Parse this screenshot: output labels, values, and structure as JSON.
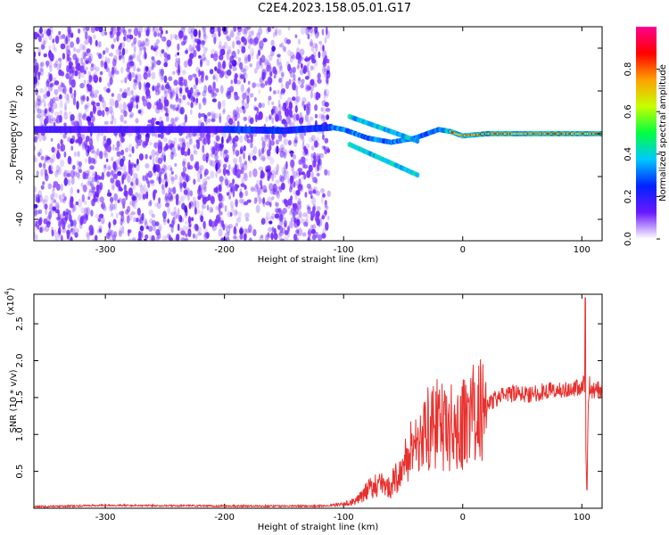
{
  "title": "C2E4.2023.158.05.01.G17",
  "colors": {
    "line": "#e8302d",
    "axis": "#000000",
    "spectrogram_base": "#6a18ff"
  },
  "chart_data": [
    {
      "type": "heatmap",
      "panel": "spectrogram",
      "xlabel": "Height of straight line (km)",
      "ylabel": "Frequency (Hz)",
      "xlim": [
        -360,
        117
      ],
      "ylim": [
        -50,
        50
      ],
      "xticks": [
        -300,
        -200,
        -100,
        0,
        100
      ],
      "yticks": [
        -40,
        -20,
        0,
        20,
        40
      ],
      "ridge": {
        "x": [
          -360,
          -300,
          -250,
          -200,
          -150,
          -110,
          -100,
          -90,
          -80,
          -70,
          -60,
          -50,
          -40,
          -30,
          -20,
          -10,
          0,
          20,
          50,
          80,
          100,
          117
        ],
        "y": [
          2,
          2,
          2,
          2,
          1.5,
          3,
          2,
          0,
          -2,
          -3,
          -4,
          -3,
          -2,
          0,
          2,
          1,
          -1,
          0,
          0,
          0,
          0,
          0
        ]
      },
      "colorbar": {
        "label": "Normalized spectral amplitude",
        "range": [
          0.0,
          1.0
        ],
        "ticks": [
          "0.0",
          "0.2",
          "0.4",
          "0.6",
          "0.8"
        ],
        "colormap": [
          "#ffffff",
          "#6a18ff",
          "#0022ff",
          "#00c8ff",
          "#00ff40",
          "#c8ff00",
          "#ffa000",
          "#ff0000",
          "#ff0090"
        ]
      }
    },
    {
      "type": "line",
      "panel": "snr",
      "xlabel": "Height of straight line (km)",
      "ylabel": "SNR (10 * v/v)",
      "scale_label": "(x10",
      "scale_exp": "4",
      "scale_close": ")",
      "xlim": [
        -360,
        117
      ],
      "ylim": [
        0,
        2.9
      ],
      "xticks": [
        -300,
        -200,
        -100,
        0,
        100
      ],
      "yticks": [
        "0.5",
        "1.0",
        "1.5",
        "2.0",
        "2.5"
      ],
      "grid": false,
      "series": [
        {
          "x": [
            -360,
            -300,
            -200,
            -120,
            -100,
            -95,
            -90,
            -85,
            -80,
            -75,
            -70,
            -65,
            -60,
            -55,
            -50,
            -45,
            -40,
            -35,
            -30,
            -25,
            -20,
            -15,
            -10,
            -5,
            0,
            10,
            20,
            30,
            40,
            50,
            60,
            70,
            80,
            90,
            95,
            100,
            102,
            104,
            106,
            108,
            117
          ],
          "y": [
            0.02,
            0.04,
            0.03,
            0.03,
            0.05,
            0.08,
            0.1,
            0.15,
            0.25,
            0.3,
            0.35,
            0.25,
            0.3,
            0.45,
            0.55,
            0.75,
            0.9,
            1.0,
            1.05,
            1.1,
            1.15,
            1.05,
            1.1,
            1.05,
            1.15,
            1.3,
            1.4,
            1.5,
            1.55,
            1.55,
            1.55,
            1.6,
            1.6,
            1.6,
            1.65,
            1.6,
            1.75,
            0.25,
            1.7,
            1.6,
            1.6
          ]
        }
      ],
      "spike": {
        "x": 103,
        "y": 2.85
      }
    }
  ]
}
